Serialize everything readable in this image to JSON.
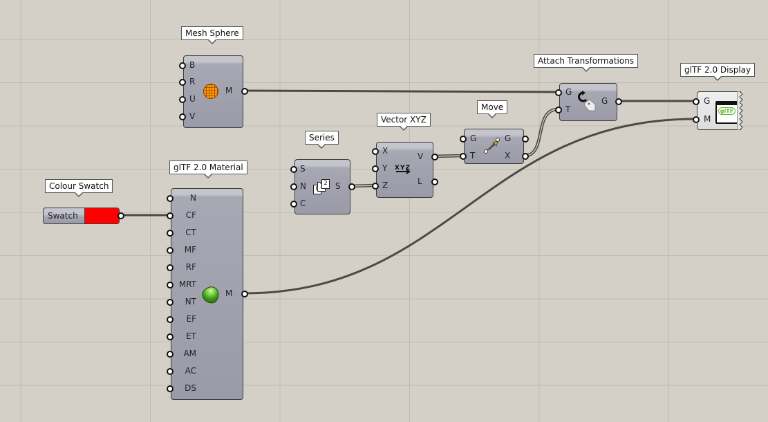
{
  "components": {
    "mesh_sphere": {
      "title": "Mesh Sphere",
      "inputs": [
        "B",
        "R",
        "U",
        "V"
      ],
      "outputs": [
        "M"
      ],
      "icon": "mesh-sphere-icon"
    },
    "colour_swatch": {
      "title": "Colour Swatch",
      "label": "Swatch",
      "color": "#ff0000"
    },
    "gltf_material": {
      "title": "glTF 2.0 Material",
      "inputs": [
        "N",
        "CF",
        "CT",
        "MF",
        "RF",
        "MRT",
        "NT",
        "EF",
        "ET",
        "AM",
        "AC",
        "DS"
      ],
      "outputs": [
        "M"
      ],
      "icon": "material-icon"
    },
    "series": {
      "title": "Series",
      "inputs": [
        "S",
        "N",
        "C"
      ],
      "outputs": [
        "S"
      ],
      "icon": "series-icon"
    },
    "vector_xyz": {
      "title": "Vector XYZ",
      "inputs": [
        "X",
        "Y",
        "Z"
      ],
      "outputs": [
        "V",
        "L"
      ],
      "icon": "vector-xyz-icon",
      "icon_text": "XYZ"
    },
    "move": {
      "title": "Move",
      "inputs": [
        "G",
        "T"
      ],
      "outputs": [
        "G",
        "X"
      ],
      "icon": "move-icon"
    },
    "attach_transformations": {
      "title": "Attach Transformations",
      "inputs": [
        "G",
        "T"
      ],
      "outputs": [
        "G"
      ],
      "icon": "attach-transform-icon"
    },
    "gltf_display": {
      "title": "glTF 2.0 Display",
      "inputs": [
        "G",
        "M"
      ],
      "icon": "gltf-icon",
      "icon_text": "glTF"
    }
  },
  "colors": {
    "canvas": "#d4d0c8",
    "wire": "#4a4a46",
    "component": "#a0a0ae",
    "swatch": "#ff0000"
  }
}
